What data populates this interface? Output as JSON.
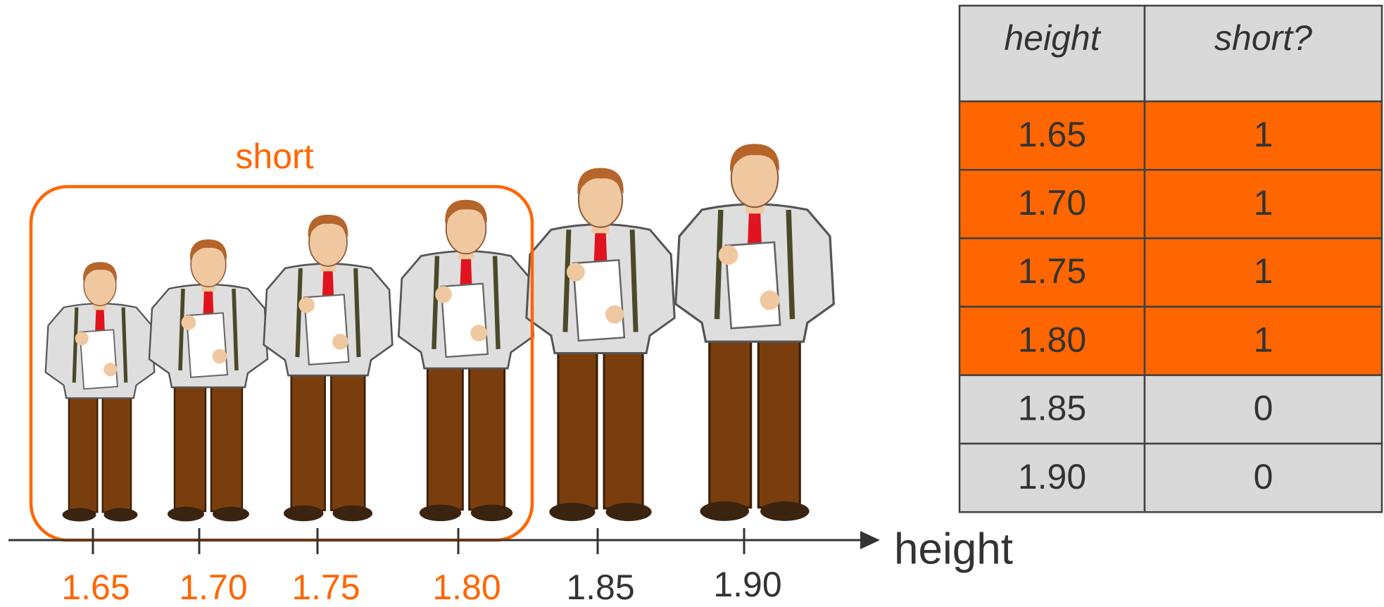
{
  "diagram": {
    "group_label": "short",
    "axis_label": "height",
    "ticks": [
      "1.65",
      "1.70",
      "1.75",
      "1.80",
      "1.85",
      "1.90"
    ]
  },
  "table": {
    "header": [
      "height",
      "short?"
    ],
    "rows": [
      [
        "1.65",
        "1"
      ],
      [
        "1.70",
        "1"
      ],
      [
        "1.75",
        "1"
      ],
      [
        "1.80",
        "1"
      ],
      [
        "1.85",
        "0"
      ],
      [
        "1.90",
        "0"
      ]
    ]
  }
}
